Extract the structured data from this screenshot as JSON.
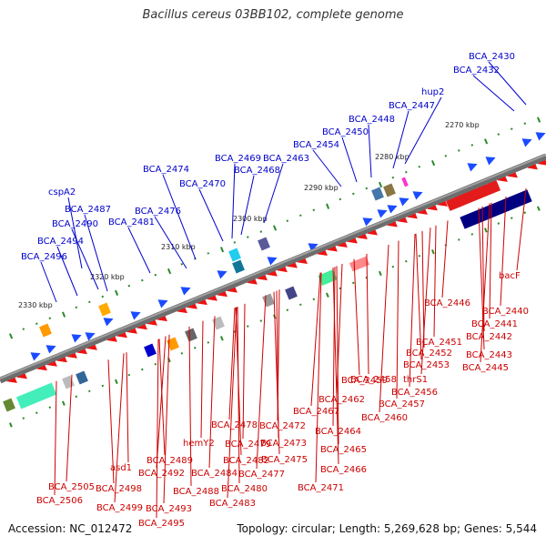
{
  "title": "Bacillus cereus 03BB102, complete genome",
  "accession": "Accession: NC_012472",
  "summary": "Topology: circular; Length: 5,269,628 bp; Genes: 5,544",
  "colors": {
    "top_label": "#0000cc",
    "bottom_label": "#cc0000",
    "backbone": "#777777",
    "tick": "#2a8a2a",
    "forward_cds": "#1a4bff",
    "reverse_cds": "#ee1111",
    "rna": "#20a0b0",
    "feature_dark": "#000080"
  },
  "kbp_labels": [
    "2270 kbp",
    "2280 kbp",
    "2290 kbp",
    "2300 kbp",
    "2310 kbp",
    "2320 kbp",
    "2330 kbp"
  ],
  "top_labels": [
    "BCA_2430",
    "BCA_2432",
    "hup2",
    "BCA_2447",
    "BCA_2448",
    "BCA_2450",
    "BCA_2454",
    "BCA_2463",
    "BCA_2468",
    "BCA_2469",
    "BCA_2470",
    "BCA_2474",
    "BCA_2476",
    "BCA_2481",
    "cspA2",
    "BCA_2487",
    "BCA_2490",
    "BCA_2494",
    "BCA_2496"
  ],
  "bottom_labels": [
    "bacF",
    "BCA_2440",
    "BCA_2441",
    "BCA_2442",
    "BCA_2443",
    "BCA_2445",
    "BCA_2446",
    "BCA_2451",
    "BCA_2452",
    "BCA_2453",
    "thrS1",
    "BCA_2456",
    "BCA_2457",
    "BCA_2458",
    "BCA_2459",
    "BCA_2460",
    "BCA_2462",
    "BCA_2464",
    "BCA_2465",
    "BCA_2466",
    "BCA_2467",
    "BCA_2471",
    "BCA_2472",
    "BCA_2473",
    "BCA_2475",
    "BCA_2477",
    "BCA_2478",
    "BCA_2479",
    "BCA_2480",
    "BCA_2482",
    "BCA_2483",
    "BCA_2484",
    "hemY2",
    "BCA_2488",
    "BCA_2489",
    "BCA_2492",
    "BCA_2493",
    "BCA_2495",
    "asd1",
    "BCA_2498",
    "BCA_2499",
    "BCA_2505",
    "BCA_2506"
  ]
}
